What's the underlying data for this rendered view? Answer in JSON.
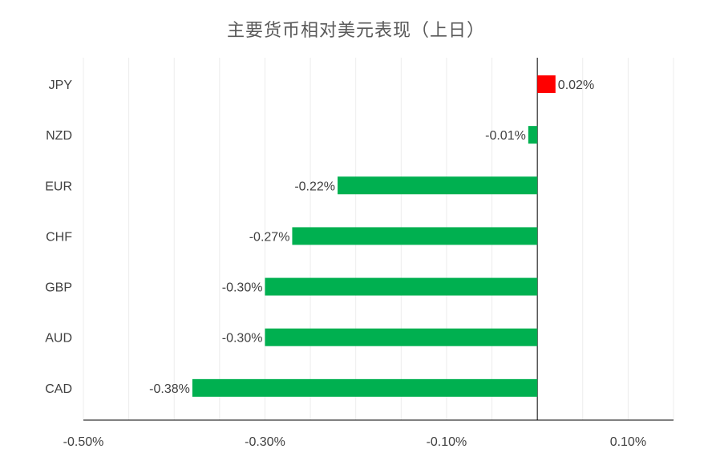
{
  "chart_data": {
    "type": "bar",
    "orientation": "horizontal",
    "title": "主要货币相对美元表现（上日）",
    "categories": [
      "JPY",
      "NZD",
      "EUR",
      "CHF",
      "GBP",
      "AUD",
      "CAD"
    ],
    "values": [
      0.02,
      -0.01,
      -0.22,
      -0.27,
      -0.3,
      -0.3,
      -0.38
    ],
    "data_labels": [
      "0.02%",
      "-0.01%",
      "-0.22%",
      "-0.27%",
      "-0.30%",
      "-0.30%",
      "-0.38%"
    ],
    "xlim": [
      -0.5,
      0.15
    ],
    "xticks": [
      -0.5,
      -0.3,
      -0.1,
      0.1
    ],
    "xtick_labels": [
      "-0.50%",
      "-0.30%",
      "-0.10%",
      "0.10%"
    ],
    "grid": true,
    "colors": {
      "positive": "#ff0000",
      "negative": "#00b050",
      "gridline": "#ececec",
      "axis": "#000000"
    }
  }
}
